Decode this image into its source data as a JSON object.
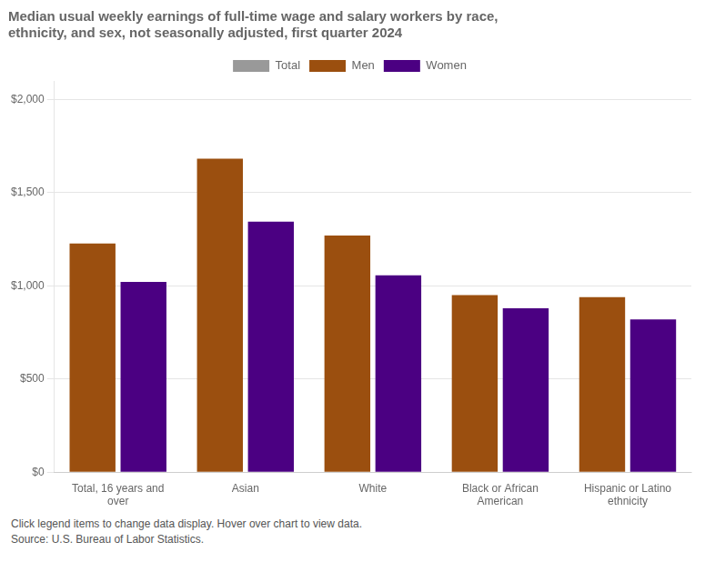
{
  "chart_data": {
    "type": "bar",
    "title": [
      "Median usual weekly earnings of full-time wage and salary workers by race,",
      "ethnicity, and sex, not seasonally adjusted, first quarter 2024"
    ],
    "categories": [
      "Total, 16 years and\nover",
      "Asian",
      "White",
      "Black or African\nAmerican",
      "Hispanic or Latino\nethnicity"
    ],
    "series": [
      {
        "name": "Total",
        "color": "#999999",
        "values": [
          null,
          null,
          null,
          null,
          null
        ]
      },
      {
        "name": "Men",
        "color": "#9B4F0F",
        "values": [
          1227,
          1683,
          1270,
          950,
          940
        ]
      },
      {
        "name": "Women",
        "color": "#4B0082",
        "values": [
          1021,
          1345,
          1057,
          880,
          820
        ]
      }
    ],
    "ylim": [
      0,
      2100
    ],
    "yticks": [
      {
        "value": 0,
        "label": "$0"
      },
      {
        "value": 500,
        "label": "$500"
      },
      {
        "value": 1000,
        "label": "$1,000"
      },
      {
        "value": 1500,
        "label": "$1,500"
      },
      {
        "value": 2000,
        "label": "$2,000"
      }
    ],
    "grid": true,
    "legend": "top",
    "annotations": [
      "Click legend items to change data display. Hover over chart to view data.",
      "Source: U.S. Bureau of Labor Statistics."
    ]
  }
}
